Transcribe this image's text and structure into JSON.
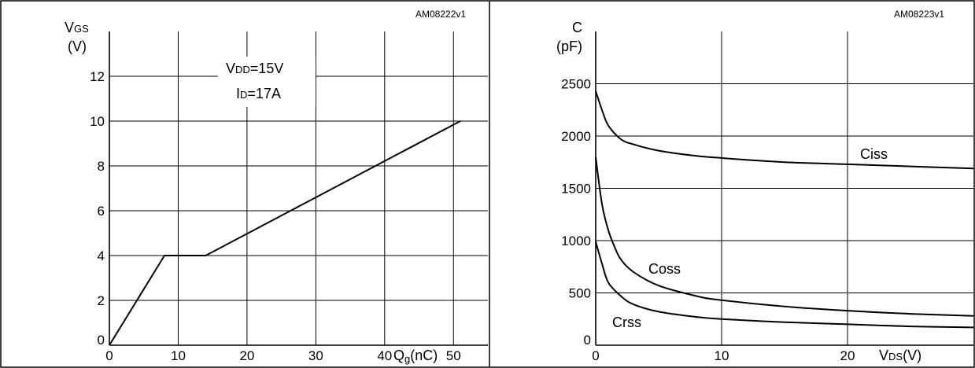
{
  "chart_data": [
    {
      "type": "line",
      "code": "AM08222v1",
      "ylabel": "VGS",
      "ylabel_main": "V",
      "ylabel_sub": "GS",
      "yunit": "(V)",
      "xlabel_main": "Q",
      "xlabel_sub": "g",
      "xlabel_unit": "(nC)",
      "xlim": [
        0,
        55
      ],
      "ylim": [
        0,
        14
      ],
      "x_ticks": [
        "0",
        "10",
        "20",
        "30",
        "40",
        "50"
      ],
      "y_ticks": [
        "0",
        "2",
        "4",
        "6",
        "8",
        "10",
        "12"
      ],
      "grid": true,
      "annotation": {
        "vdd_main": "V",
        "vdd_sub": "DD",
        "vdd_value": "=15V",
        "id_main": "I",
        "id_sub": "D",
        "id_value": "=17A"
      },
      "series": [
        {
          "x": [
            0,
            8,
            14,
            51
          ],
          "y": [
            0,
            4,
            4,
            10
          ]
        }
      ]
    },
    {
      "type": "line",
      "code": "AM08223v1",
      "ylabel": "C",
      "yunit": "(pF)",
      "xlabel_main": "V",
      "xlabel_sub": "DS",
      "xlabel_unit": "(V)",
      "xlim": [
        0,
        30
      ],
      "ylim": [
        0,
        3000
      ],
      "x_ticks": [
        "0",
        "10",
        "20"
      ],
      "y_ticks": [
        "0",
        "500",
        "1000",
        "1500",
        "2000",
        "2500"
      ],
      "grid": true,
      "series": [
        {
          "name": "Ciss",
          "x": [
            0,
            0.5,
            1,
            2,
            3,
            5,
            8,
            10,
            15,
            20,
            25,
            30
          ],
          "y": [
            2430,
            2250,
            2100,
            1970,
            1920,
            1860,
            1810,
            1790,
            1750,
            1730,
            1710,
            1690
          ]
        },
        {
          "name": "Coss",
          "x": [
            0,
            0.5,
            1,
            1.5,
            2,
            3,
            5,
            8,
            10,
            15,
            20,
            25,
            30
          ],
          "y": [
            1800,
            1350,
            1100,
            940,
            820,
            700,
            570,
            470,
            430,
            370,
            330,
            300,
            280
          ]
        },
        {
          "name": "Crss",
          "x": [
            0,
            0.5,
            1,
            2,
            3,
            5,
            8,
            10,
            15,
            20,
            25,
            30
          ],
          "y": [
            990,
            780,
            600,
            470,
            390,
            320,
            270,
            250,
            220,
            200,
            180,
            170
          ]
        }
      ]
    }
  ]
}
